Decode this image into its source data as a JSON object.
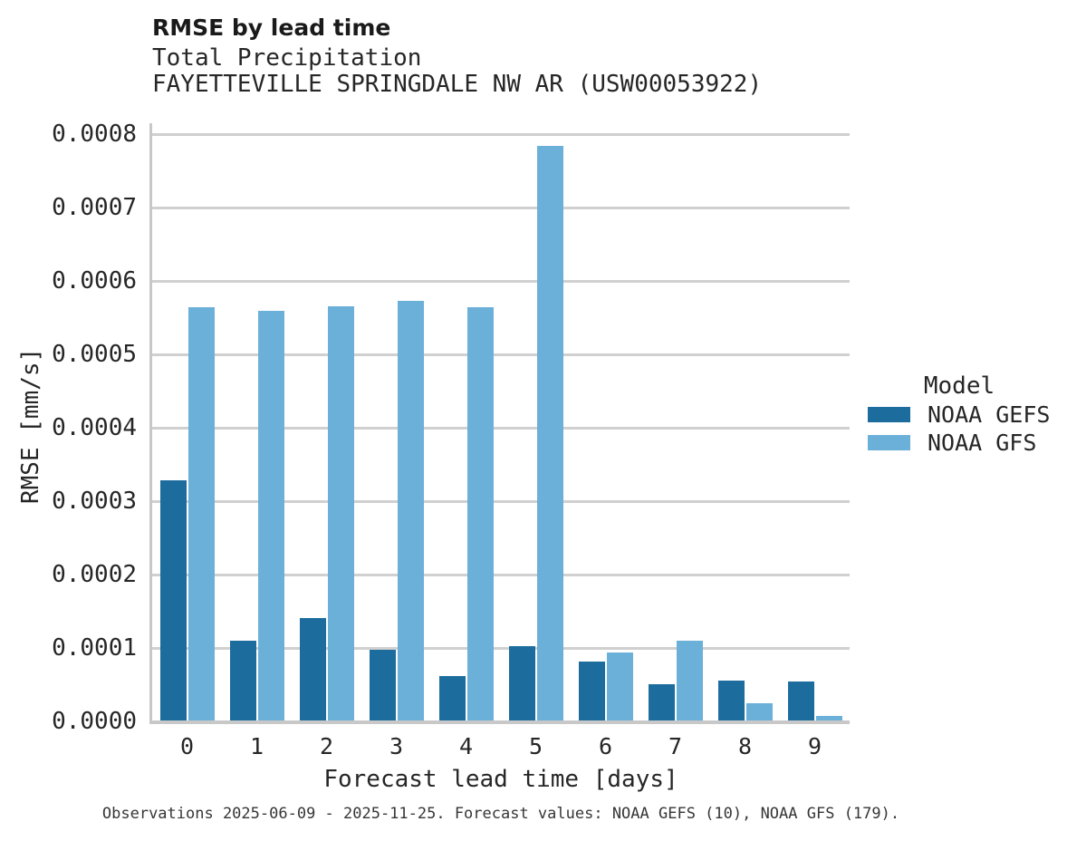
{
  "figure": {
    "title": "RMSE by lead time",
    "subtitle_line1": "Total Precipitation",
    "subtitle_line2": "FAYETTEVILLE SPRINGDALE NW AR (USW00053922)",
    "caption": "Observations 2025-06-09 - 2025-11-25. Forecast values: NOAA GEFS (10), NOAA GFS (179)."
  },
  "chart_data": {
    "type": "bar",
    "title": "RMSE by lead time",
    "subtitle": [
      "Total Precipitation",
      "FAYETTEVILLE SPRINGDALE NW AR (USW00053922)"
    ],
    "xlabel": "Forecast lead time [days]",
    "ylabel": "RMSE [mm/s]",
    "categories": [
      "0",
      "1",
      "2",
      "3",
      "4",
      "5",
      "6",
      "7",
      "8",
      "9"
    ],
    "series": [
      {
        "name": "NOAA GEFS",
        "color": "#1c6d9e",
        "values": [
          0.000328,
          0.00011,
          0.000141,
          9.8e-05,
          6.2e-05,
          0.000102,
          8.2e-05,
          5.1e-05,
          5.5e-05,
          5.4e-05
        ]
      },
      {
        "name": "NOAA GFS",
        "color": "#6bb0d8",
        "values": [
          0.000564,
          0.000559,
          0.000566,
          0.000573,
          0.000564,
          0.000784,
          9.4e-05,
          0.00011,
          2.5e-05,
          7e-06
        ]
      }
    ],
    "ylim": [
      0.0,
      0.0008
    ],
    "ytick_labels": [
      "0.0000",
      "0.0001",
      "0.0002",
      "0.0003",
      "0.0004",
      "0.0005",
      "0.0006",
      "0.0007",
      "0.0008"
    ],
    "grid": true,
    "legend": {
      "title": "Model",
      "position": "right"
    },
    "caption": "Observations 2025-06-09 - 2025-11-25. Forecast values: NOAA GEFS (10), NOAA GFS (179)."
  },
  "colors": {
    "noaa_gefs": "#1c6d9e",
    "noaa_gfs": "#6bb0d8",
    "gridline": "#d0d0d0",
    "spine": "#c8c8c8",
    "background": "#ffffff"
  }
}
